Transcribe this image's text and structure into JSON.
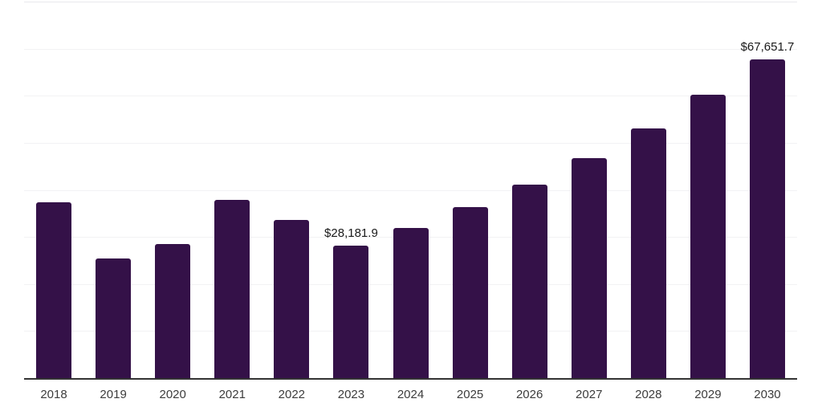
{
  "chart_data": {
    "type": "bar",
    "title": "",
    "xlabel": "",
    "ylabel": "",
    "categories": [
      "2018",
      "2019",
      "2020",
      "2021",
      "2022",
      "2023",
      "2024",
      "2025",
      "2026",
      "2027",
      "2028",
      "2029",
      "2030"
    ],
    "values": [
      37300,
      25500,
      28500,
      37800,
      33600,
      28181.9,
      31900,
      36400,
      41100,
      46700,
      53100,
      60300,
      67651.7
    ],
    "data_labels": [
      {
        "category": "2023",
        "text": "$28,181.9"
      },
      {
        "category": "2030",
        "text": "$67,651.7"
      }
    ],
    "ylim": [
      0,
      80000
    ],
    "gridline_step": 10000,
    "grid": "horizontal",
    "y_axis_tick_labels_visible": false,
    "legend_position": "none",
    "colors": {
      "bar": "#341148",
      "axis": "#333333",
      "gridline": "#f2f2f4",
      "top_gridline": "#e9e9ec",
      "data_label": "#1a1a1a",
      "tick_label": "#3c3c3c",
      "background": "#ffffff"
    }
  }
}
